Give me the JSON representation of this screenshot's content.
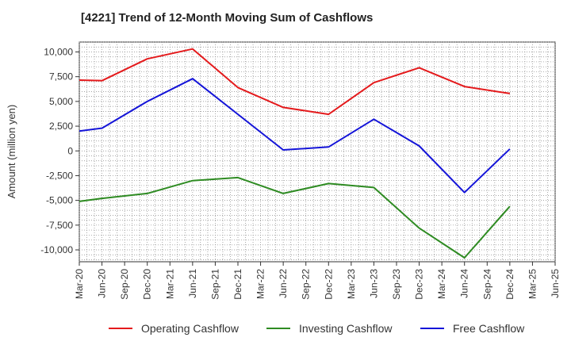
{
  "chart_data": {
    "type": "line",
    "title": "[4221]  Trend of 12-Month Moving Sum of Cashflows",
    "ylabel": "Amount (million yen)",
    "xlabel": "",
    "x": [
      "Mar-20",
      "Jun-20",
      "Sep-20",
      "Dec-20",
      "Mar-21",
      "Jun-21",
      "Sep-21",
      "Dec-21",
      "Mar-22",
      "Jun-22",
      "Sep-22",
      "Dec-22",
      "Mar-23",
      "Jun-23",
      "Sep-23",
      "Dec-23",
      "Mar-24",
      "Jun-24",
      "Sep-24",
      "Dec-24",
      "Mar-25",
      "Jun-25"
    ],
    "y_ticks": [
      10000,
      7500,
      5000,
      2500,
      0,
      -2500,
      -5000,
      -7500,
      -10000
    ],
    "y_tick_labels": [
      "10,000",
      "7,500",
      "5,000",
      "2,500",
      "0",
      "-2,500",
      "-5,000",
      "-7,500",
      "-10,000"
    ],
    "ylim": [
      -11200,
      11000
    ],
    "grid": true,
    "legend_position": "bottom",
    "series": [
      {
        "name": "Operating Cashflow",
        "color": "#e41a1c",
        "values": [
          7150,
          7100,
          null,
          9300,
          null,
          10300,
          null,
          6400,
          null,
          4400,
          null,
          3700,
          null,
          6900,
          null,
          8400,
          null,
          6500,
          null,
          5800,
          null,
          null
        ]
      },
      {
        "name": "Investing Cashflow",
        "color": "#2e8b22",
        "values": [
          -5100,
          -4800,
          null,
          -4300,
          null,
          -3000,
          null,
          -2700,
          null,
          -4300,
          null,
          -3300,
          null,
          -3700,
          null,
          -7800,
          null,
          -10800,
          null,
          -5600,
          null,
          null
        ]
      },
      {
        "name": "Free Cashflow",
        "color": "#1414d8",
        "values": [
          2000,
          2300,
          null,
          5000,
          null,
          7300,
          null,
          3700,
          null,
          100,
          null,
          400,
          null,
          3200,
          null,
          500,
          null,
          -4200,
          null,
          200,
          null,
          null
        ]
      }
    ]
  }
}
